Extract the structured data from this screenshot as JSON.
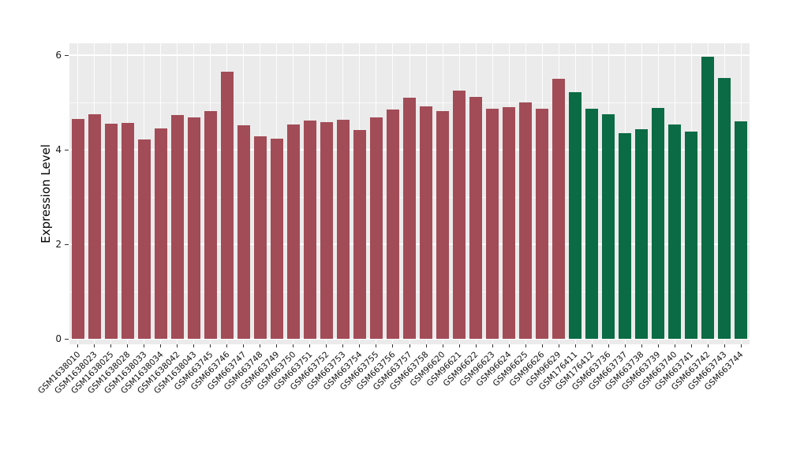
{
  "chart": {
    "background_color": "#EBEBEB",
    "grid_color": "#FFFFFF",
    "tick_color": "#333333",
    "bar_colors": {
      "groupA": "#A24C57",
      "groupB": "#0B6B45"
    }
  },
  "chart_data": {
    "type": "bar",
    "title": "",
    "xlabel": "",
    "ylabel": "Expression Level",
    "ylim": [
      0,
      6.25
    ],
    "yticks": [
      0,
      2,
      4,
      6
    ],
    "yticks_minor": [
      1,
      3,
      5
    ],
    "grid": true,
    "legend": "none",
    "categories": [
      "GSM1638010",
      "GSM1638023",
      "GSM1638025",
      "GSM1638028",
      "GSM1638033",
      "GSM1638034",
      "GSM1638042",
      "GSM1638043",
      "GSM663745",
      "GSM663746",
      "GSM663747",
      "GSM663748",
      "GSM663749",
      "GSM663750",
      "GSM663751",
      "GSM663752",
      "GSM663753",
      "GSM663754",
      "GSM663755",
      "GSM663756",
      "GSM663757",
      "GSM663758",
      "GSM96620",
      "GSM96621",
      "GSM96622",
      "GSM96623",
      "GSM96624",
      "GSM96625",
      "GSM96626",
      "GSM96629",
      "GSM176411",
      "GSM176412",
      "GSM663736",
      "GSM663737",
      "GSM663738",
      "GSM663739",
      "GSM663740",
      "GSM663741",
      "GSM663742",
      "GSM663743",
      "GSM663744"
    ],
    "values": [
      4.65,
      4.75,
      4.55,
      4.57,
      4.22,
      4.45,
      4.74,
      4.68,
      4.82,
      5.65,
      4.52,
      4.28,
      4.23,
      4.53,
      4.62,
      4.58,
      4.64,
      4.42,
      4.68,
      4.85,
      5.1,
      4.92,
      4.82,
      5.25,
      5.12,
      4.86,
      4.9,
      5.0,
      4.86,
      5.5,
      5.21,
      4.86,
      4.75,
      4.35,
      4.44,
      4.88,
      4.54,
      4.38,
      5.96,
      5.52,
      4.6
    ],
    "groups": [
      "groupA",
      "groupA",
      "groupA",
      "groupA",
      "groupA",
      "groupA",
      "groupA",
      "groupA",
      "groupA",
      "groupA",
      "groupA",
      "groupA",
      "groupA",
      "groupA",
      "groupA",
      "groupA",
      "groupA",
      "groupA",
      "groupA",
      "groupA",
      "groupA",
      "groupA",
      "groupA",
      "groupA",
      "groupA",
      "groupA",
      "groupA",
      "groupA",
      "groupA",
      "groupA",
      "groupB",
      "groupB",
      "groupB",
      "groupB",
      "groupB",
      "groupB",
      "groupB",
      "groupB",
      "groupB",
      "groupB",
      "groupB"
    ]
  }
}
